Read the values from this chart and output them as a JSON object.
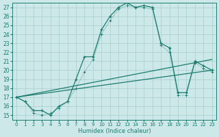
{
  "xlabel": "Humidex (Indice chaleur)",
  "xlim": [
    -0.5,
    23.5
  ],
  "ylim": [
    14.5,
    27.5
  ],
  "xticks": [
    0,
    1,
    2,
    3,
    4,
    5,
    6,
    7,
    8,
    9,
    10,
    11,
    12,
    13,
    14,
    15,
    16,
    17,
    18,
    19,
    20,
    21,
    22,
    23
  ],
  "yticks": [
    15,
    16,
    17,
    18,
    19,
    20,
    21,
    22,
    23,
    24,
    25,
    26,
    27
  ],
  "color": "#1a7a6e",
  "bg_color": "#cce8e8",
  "grid_color": "#a8cccc",
  "curve_main": {
    "x": [
      0,
      1,
      2,
      3,
      4,
      5,
      6,
      7,
      8,
      9,
      10,
      11,
      12,
      13,
      14,
      15,
      16,
      17,
      18,
      19,
      20,
      21,
      22,
      23
    ],
    "y": [
      17.0,
      16.5,
      15.5,
      15.5,
      15.0,
      16.0,
      16.5,
      19.0,
      21.5,
      21.5,
      24.5,
      26.0,
      27.0,
      27.5,
      27.0,
      27.2,
      27.0,
      23.0,
      22.5,
      17.5,
      17.5,
      21.0,
      20.5,
      20.0
    ]
  },
  "curve_thin": {
    "x": [
      0,
      1,
      2,
      3,
      4,
      5,
      6,
      7,
      8,
      9,
      10,
      11,
      12,
      13,
      14,
      15,
      16,
      17,
      18,
      19,
      20,
      21,
      22,
      23
    ],
    "y": [
      17.0,
      16.5,
      15.2,
      15.0,
      15.2,
      15.8,
      16.5,
      18.0,
      19.8,
      21.2,
      24.0,
      25.5,
      26.8,
      27.2,
      27.0,
      27.0,
      26.8,
      22.8,
      22.0,
      17.2,
      17.2,
      20.8,
      20.2,
      19.8
    ]
  },
  "line_upper": {
    "x": [
      0,
      23
    ],
    "y": [
      17.0,
      21.2
    ]
  },
  "line_lower": {
    "x": [
      0,
      23
    ],
    "y": [
      17.0,
      20.0
    ]
  }
}
